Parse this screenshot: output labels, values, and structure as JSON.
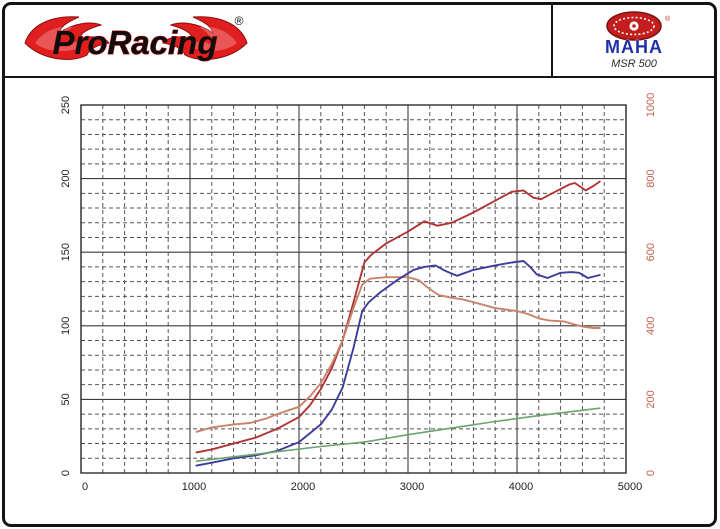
{
  "header": {
    "brand": "ProRacing",
    "registered": "®",
    "maha_brand": "MAHA",
    "maha_model": "MSR 500",
    "brand_color": "#e01e1e",
    "maha_blue": "#2230a8"
  },
  "chart_data": {
    "type": "line",
    "title": "",
    "xlabel": "",
    "ylabel": "",
    "x_axis": {
      "min": 0,
      "max": 5000,
      "ticks": [
        0,
        1000,
        2000,
        3000,
        4000,
        5000
      ],
      "minor_step": 200
    },
    "y_left_axis": {
      "min": 0,
      "max": 250,
      "ticks": [
        0,
        50,
        100,
        150,
        200,
        250
      ],
      "minor_step": 10,
      "label_color": "#222222"
    },
    "y_right_axis": {
      "min": 0,
      "max": 1000,
      "ticks": [
        0,
        200,
        400,
        600,
        800,
        1000
      ],
      "label_color": "#c2614e"
    },
    "grid": {
      "major": true,
      "minor": true,
      "minor_dashed": true,
      "major_color": "#3c3c3c",
      "minor_color": "#555555"
    },
    "legend": "none",
    "series": [
      {
        "name": "dark-red-curve",
        "color": "#b03434",
        "width": 1.9,
        "points": [
          [
            1060,
            14
          ],
          [
            1200,
            16
          ],
          [
            1400,
            20
          ],
          [
            1600,
            24
          ],
          [
            1800,
            30
          ],
          [
            2000,
            38
          ],
          [
            2100,
            46
          ],
          [
            2200,
            57
          ],
          [
            2300,
            71
          ],
          [
            2400,
            90
          ],
          [
            2500,
            116
          ],
          [
            2600,
            143
          ],
          [
            2660,
            148
          ],
          [
            2800,
            156
          ],
          [
            3000,
            164
          ],
          [
            3150,
            171
          ],
          [
            3270,
            168
          ],
          [
            3400,
            170
          ],
          [
            3600,
            177
          ],
          [
            3800,
            185
          ],
          [
            3950,
            191
          ],
          [
            4060,
            192
          ],
          [
            4150,
            187
          ],
          [
            4220,
            186
          ],
          [
            4350,
            191
          ],
          [
            4480,
            196
          ],
          [
            4530,
            197
          ],
          [
            4630,
            192
          ],
          [
            4700,
            195
          ],
          [
            4760,
            198
          ]
        ]
      },
      {
        "name": "salmon-curve",
        "color": "#c9836a",
        "width": 1.9,
        "points": [
          [
            1060,
            28
          ],
          [
            1200,
            31
          ],
          [
            1400,
            33
          ],
          [
            1550,
            34
          ],
          [
            1700,
            37
          ],
          [
            1800,
            40
          ],
          [
            2000,
            45
          ],
          [
            2100,
            52
          ],
          [
            2200,
            61
          ],
          [
            2300,
            74
          ],
          [
            2400,
            90
          ],
          [
            2500,
            112
          ],
          [
            2580,
            128
          ],
          [
            2650,
            132
          ],
          [
            2800,
            133
          ],
          [
            3000,
            133
          ],
          [
            3100,
            131
          ],
          [
            3180,
            126
          ],
          [
            3280,
            121
          ],
          [
            3400,
            119
          ],
          [
            3500,
            118
          ],
          [
            3600,
            116
          ],
          [
            3800,
            112
          ],
          [
            4000,
            110
          ],
          [
            4100,
            108
          ],
          [
            4200,
            105
          ],
          [
            4300,
            103.5
          ],
          [
            4430,
            103
          ],
          [
            4520,
            101
          ],
          [
            4600,
            99.5
          ],
          [
            4700,
            98.5
          ],
          [
            4760,
            98.5
          ]
        ]
      },
      {
        "name": "blue-curve",
        "color": "#3d3d9c",
        "width": 1.9,
        "points": [
          [
            1060,
            5
          ],
          [
            1200,
            7
          ],
          [
            1400,
            10
          ],
          [
            1600,
            12
          ],
          [
            1800,
            15
          ],
          [
            2000,
            21
          ],
          [
            2200,
            33
          ],
          [
            2300,
            43
          ],
          [
            2400,
            58
          ],
          [
            2500,
            85
          ],
          [
            2580,
            110
          ],
          [
            2640,
            116
          ],
          [
            2750,
            123
          ],
          [
            2900,
            131
          ],
          [
            3050,
            138
          ],
          [
            3150,
            140
          ],
          [
            3250,
            141
          ],
          [
            3350,
            137
          ],
          [
            3450,
            134
          ],
          [
            3600,
            138
          ],
          [
            3800,
            141
          ],
          [
            3950,
            143
          ],
          [
            4060,
            144
          ],
          [
            4120,
            140
          ],
          [
            4180,
            135
          ],
          [
            4280,
            132.5
          ],
          [
            4400,
            136
          ],
          [
            4500,
            136.5
          ],
          [
            4570,
            136
          ],
          [
            4650,
            132.5
          ],
          [
            4760,
            134.5
          ]
        ]
      },
      {
        "name": "green-curve",
        "color": "#6ba46f",
        "width": 1.6,
        "points": [
          [
            1060,
            8
          ],
          [
            1400,
            11
          ],
          [
            1800,
            14.5
          ],
          [
            2200,
            18
          ],
          [
            2600,
            21
          ],
          [
            3000,
            26
          ],
          [
            3400,
            30.5
          ],
          [
            3800,
            35
          ],
          [
            4200,
            39
          ],
          [
            4760,
            44
          ]
        ]
      }
    ]
  }
}
